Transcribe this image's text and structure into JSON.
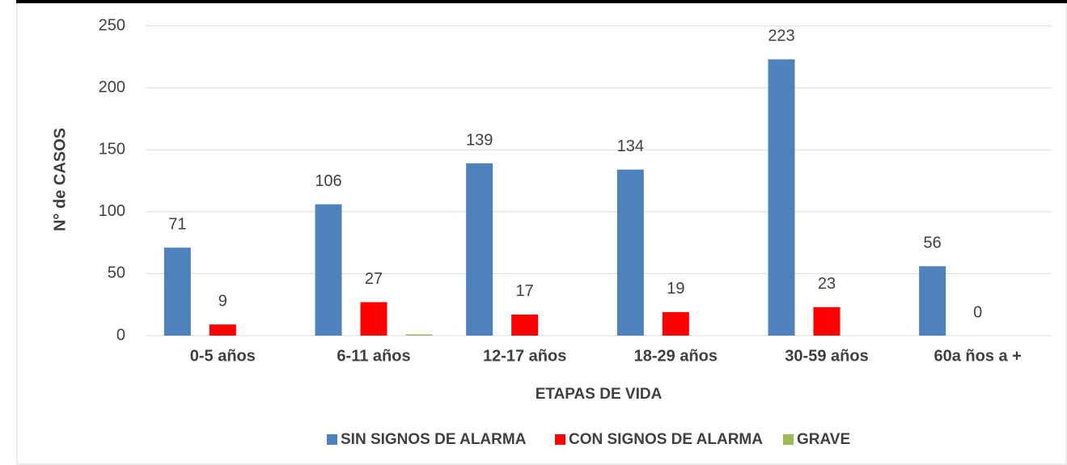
{
  "chart_data": {
    "type": "bar",
    "x_label": "ETAPAS DE VIDA",
    "y_label": "N° de CASOS",
    "categories": [
      "0-5 años",
      "6-11 años",
      "12-17 años",
      "18-29 años",
      "30-59 años",
      "60a ños a +"
    ],
    "series": [
      {
        "name": "SIN SIGNOS DE ALARMA",
        "color": "#4f81bd",
        "values": [
          71,
          106,
          139,
          134,
          223,
          56
        ],
        "labels": true
      },
      {
        "name": "CON SIGNOS DE ALARMA",
        "color": "#ff0000",
        "values": [
          9,
          27,
          17,
          19,
          23,
          0
        ],
        "labels": true
      },
      {
        "name": "GRAVE",
        "color": "#9bbb59",
        "values": [
          0,
          1,
          0,
          0,
          0,
          0
        ],
        "labels": false
      }
    ],
    "ylim": [
      0,
      250
    ],
    "yticks": [
      0,
      50,
      100,
      150,
      200,
      250
    ],
    "grid": true,
    "legend": "bottom"
  }
}
